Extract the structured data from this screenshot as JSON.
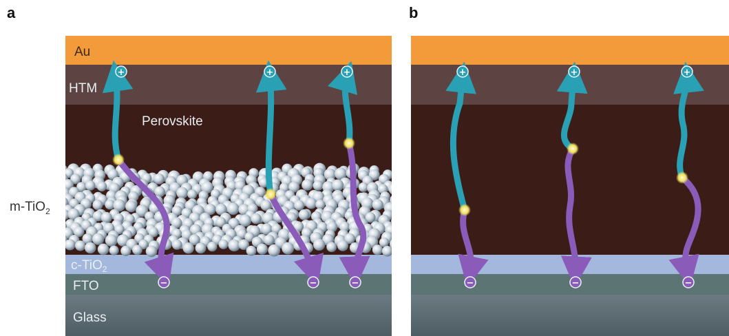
{
  "panels": [
    {
      "letter": "a"
    },
    {
      "letter": "b"
    }
  ],
  "layers": {
    "au": "Au",
    "htm": "HTM",
    "perovskite": "Perovskite",
    "c_tio2": "c-TiO",
    "c_tio2_sub": "2",
    "fto": "FTO",
    "glass": "Glass"
  },
  "side_label": {
    "text": "m-TiO",
    "sub": "2"
  },
  "charges": {
    "hole": "+",
    "electron": "−"
  },
  "colors": {
    "au": "#f39a3a",
    "htm": "#5d4443",
    "perovskite": "#3c1c16",
    "c_tio2": "#a4b7dd",
    "fto": "#5d7475",
    "glass": "#5b6a72",
    "hole_path": "#2aa0b4",
    "electron_path": "#8a5bb8"
  }
}
